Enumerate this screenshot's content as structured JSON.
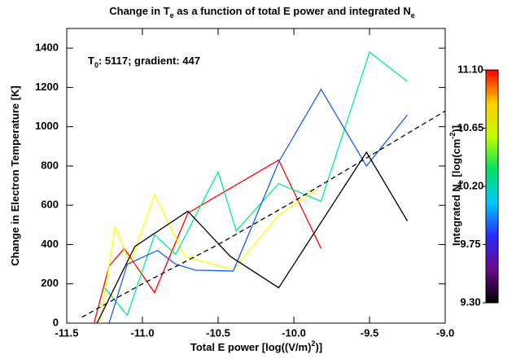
{
  "chart_data": {
    "type": "line",
    "title": [
      {
        "text": "Change in T"
      },
      {
        "text": "e",
        "script": "sub"
      },
      {
        "text": " as a function of total E power and integrated N"
      },
      {
        "text": "e",
        "script": "sub"
      }
    ],
    "annotation": [
      {
        "text": "T"
      },
      {
        "text": "0",
        "script": "sub"
      },
      {
        "text": ": 5117; gradient: 447"
      }
    ],
    "x_label": [
      {
        "text": "Total E power [log((V/m)"
      },
      {
        "text": "2",
        "script": "super"
      },
      {
        "text": ")]"
      }
    ],
    "y_label": [
      {
        "text": "Change in Electron Temperature [K]"
      }
    ],
    "xlim": [
      -11.5,
      -9.0
    ],
    "xticks": [
      -11.5,
      {
        "value": -11,
        "label": "-11.0"
      },
      -10.5,
      {
        "value": -10,
        "label": "-10.0"
      },
      -9.5,
      {
        "value": -9,
        "label": "-9.0"
      }
    ],
    "ylim": [
      0,
      1500
    ],
    "yticks": [
      0,
      200,
      400,
      600,
      800,
      1000,
      1200,
      1400
    ],
    "series": [
      {
        "color": "#ff0000",
        "x": [
          -11.32,
          -11.22,
          -11.12,
          -10.92,
          -10.7,
          -10.1,
          -9.82
        ],
        "values": [
          0,
          290,
          380,
          155,
          560,
          830,
          380
        ]
      },
      {
        "color": "#ffff00",
        "x": [
          -11.28,
          -11.18,
          -11.08,
          -10.92,
          -10.72,
          -10.4,
          -10.1,
          -9.85
        ],
        "values": [
          0,
          490,
          300,
          655,
          340,
          270,
          550,
          680
        ]
      },
      {
        "color": "#00ee88",
        "x": [
          -11.25,
          -11.1,
          -10.92,
          -10.78,
          -10.5,
          -10.38,
          -10.1,
          -9.82,
          -9.5,
          -9.25
        ],
        "values": [
          180,
          40,
          450,
          350,
          770,
          470,
          710,
          620,
          1380,
          1230
        ]
      },
      {
        "color": "#1a5cff",
        "x": [
          -11.22,
          -11.1,
          -10.9,
          -10.78,
          -10.65,
          -10.4,
          -10.1,
          -9.82,
          -9.52,
          -9.25
        ],
        "values": [
          0,
          300,
          370,
          300,
          270,
          265,
          820,
          1190,
          800,
          1060
        ]
      },
      {
        "color": "#000000",
        "x": [
          -11.3,
          -11.05,
          -10.7,
          -10.42,
          -10.1,
          -9.52,
          -9.25
        ],
        "values": [
          0,
          390,
          570,
          340,
          180,
          870,
          520
        ]
      },
      {
        "color": "#000000",
        "dashed": true,
        "x": [
          -11.4,
          -11.0,
          -10.5,
          -10.0,
          -9.5,
          -9.0
        ],
        "values": [
          30,
          200,
          400,
          620,
          850,
          1080
        ]
      }
    ],
    "colorbar": {
      "label": [
        {
          "text": "Integrated N"
        },
        {
          "text": "e",
          "script": "sub"
        },
        {
          "text": " [log(cm"
        },
        {
          "text": "-2",
          "script": "super"
        },
        {
          "text": ")]"
        }
      ],
      "lim": [
        9.3,
        11.1
      ],
      "ticks": [
        {
          "value": 9.3,
          "label": "9.30"
        },
        9.75,
        {
          "value": 10.2,
          "label": "10.20"
        },
        10.65,
        {
          "value": 11.1,
          "label": "11.10"
        }
      ],
      "colors": [
        "#000000",
        "#6a0a8a",
        "#2a2aff",
        "#00c8ff",
        "#00e060",
        "#c0ff00",
        "#ffd000",
        "#ff0000"
      ]
    }
  }
}
